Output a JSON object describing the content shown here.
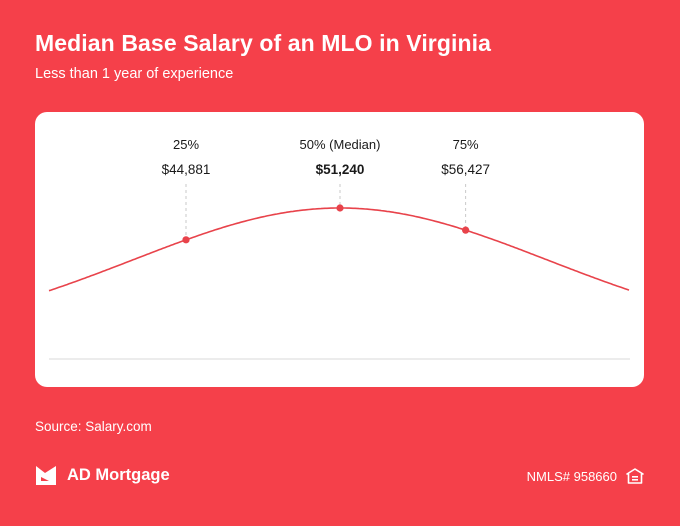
{
  "title": "Median Base Salary of an MLO in Virginia",
  "subtitle": "Less than 1 year of experience",
  "source": "Source: Salary.com",
  "brand": {
    "name": "AD Mortgage",
    "logo_icon": "ad-mortgage-logo-icon"
  },
  "nmls": "NMLS# 958660",
  "housing_icon": "equal-housing-icon",
  "colors": {
    "background": "#f5404a",
    "curve": "#e8434b",
    "card": "#ffffff",
    "text": "#1a1a1a"
  },
  "chart_data": {
    "type": "line",
    "description_shape": "bell curve (normal distribution)",
    "series": [
      {
        "values": [
          44881,
          51240,
          56427
        ]
      }
    ],
    "markers": [
      {
        "percentile": "25%",
        "value_label": "$44,881",
        "value": 44881,
        "bold": false
      },
      {
        "percentile": "50% (Median)",
        "value_label": "$51,240",
        "value": 51240,
        "bold": true
      },
      {
        "percentile": "75%",
        "value_label": "$56,427",
        "value": 56427,
        "bold": false
      }
    ],
    "grid": false,
    "legend": "none"
  }
}
